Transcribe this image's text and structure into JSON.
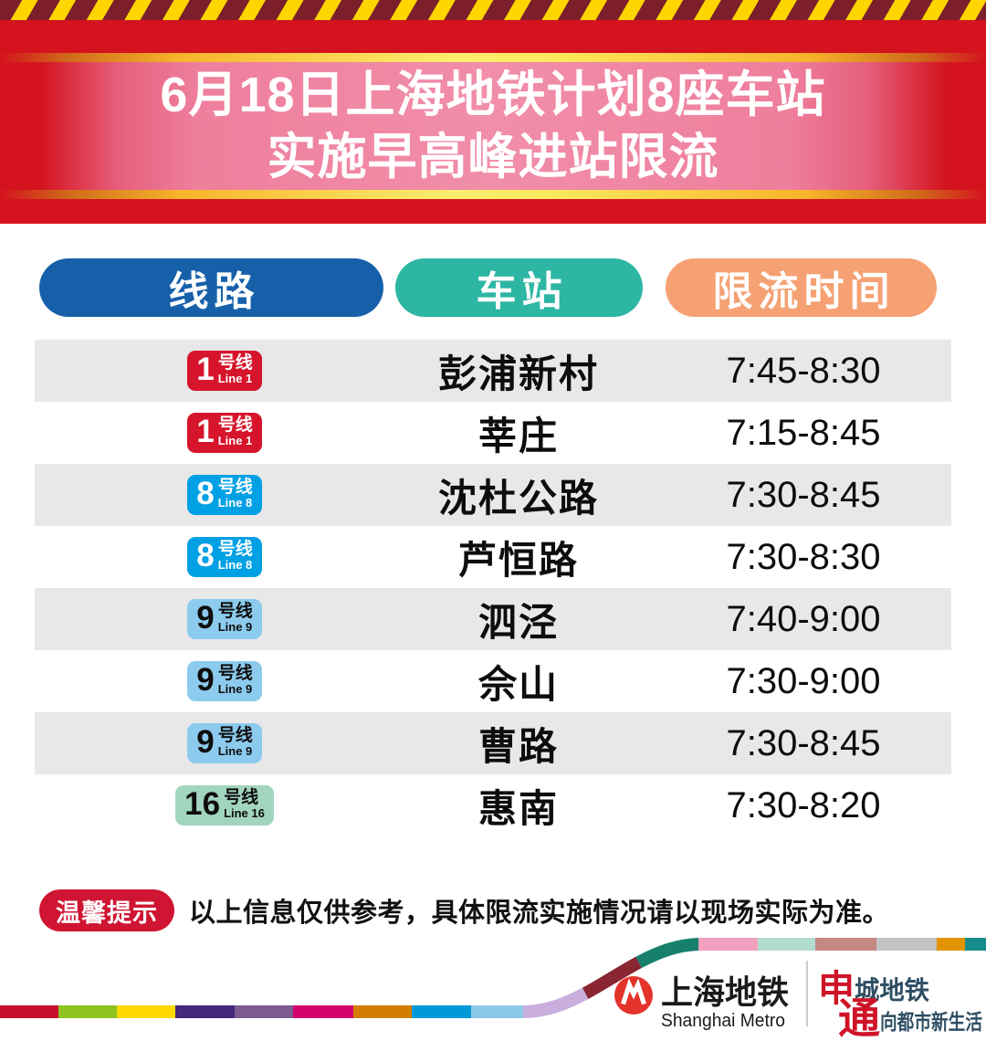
{
  "banner": {
    "title_line1": "6月18日上海地铁计划8座车站",
    "title_line2": "实施早高峰进站限流"
  },
  "table": {
    "headers": [
      {
        "label": "线路",
        "color": "#1660aa"
      },
      {
        "label": "车站",
        "color": "#2db6a3"
      },
      {
        "label": "限流时间",
        "color": "#f5a173"
      }
    ],
    "rows": [
      {
        "line_number": "1",
        "line_suffix": "号线",
        "line_en": "Line 1",
        "badge_bg": "#d6142b",
        "badge_fg": "#ffffff",
        "station": "彭浦新村",
        "time": "7:45-8:30"
      },
      {
        "line_number": "1",
        "line_suffix": "号线",
        "line_en": "Line 1",
        "badge_bg": "#d6142b",
        "badge_fg": "#ffffff",
        "station": "莘庄",
        "time": "7:15-8:45"
      },
      {
        "line_number": "8",
        "line_suffix": "号线",
        "line_en": "Line 8",
        "badge_bg": "#00a0e4",
        "badge_fg": "#ffffff",
        "station": "沈杜公路",
        "time": "7:30-8:45"
      },
      {
        "line_number": "8",
        "line_suffix": "号线",
        "line_en": "Line 8",
        "badge_bg": "#00a0e4",
        "badge_fg": "#ffffff",
        "station": "芦恒路",
        "time": "7:30-8:30"
      },
      {
        "line_number": "9",
        "line_suffix": "号线",
        "line_en": "Line 9",
        "badge_bg": "#8ccbee",
        "badge_fg": "#0d0d0d",
        "station": "泗泾",
        "time": "7:40-9:00"
      },
      {
        "line_number": "9",
        "line_suffix": "号线",
        "line_en": "Line 9",
        "badge_bg": "#8ccbee",
        "badge_fg": "#0d0d0d",
        "station": "佘山",
        "time": "7:30-9:00"
      },
      {
        "line_number": "9",
        "line_suffix": "号线",
        "line_en": "Line 9",
        "badge_bg": "#8ccbee",
        "badge_fg": "#0d0d0d",
        "station": "曹路",
        "time": "7:30-8:45"
      },
      {
        "line_number": "16",
        "line_suffix": "号线",
        "line_en": "Line 16",
        "badge_bg": "#a2d5bf",
        "badge_fg": "#0d0d0d",
        "station": "惠南",
        "time": "7:30-8:20"
      }
    ]
  },
  "notice": {
    "badge": "温馨提示",
    "badge_color": "#d01533",
    "text": "以上信息仅供参考，具体限流实施情况请以现场实际为准。"
  },
  "footer": {
    "logo_cn": "上海地铁",
    "logo_en": "Shanghai Metro",
    "logo_red": "#e4332b",
    "slogan_1_head": "申",
    "slogan_1_rest": "城地铁",
    "slogan_2_head": "通",
    "slogan_2_rest": "向都市新生活",
    "slogan_head_color": "#cf1427",
    "slogan_rest_color": "#2e4e63",
    "stripe_bottom_colors": [
      "#c8102e",
      "#8fc31f",
      "#ffd900",
      "#46287d",
      "#7d5b93",
      "#d4006e",
      "#d27d00",
      "#0099d8",
      "#8cc8e8"
    ],
    "curve_colors": [
      "#c9aede",
      "#8a2532",
      "#17806d"
    ],
    "stripe_top_colors": [
      "#f2a0bf",
      "#b2dccd",
      "#c58883",
      "#c3c3c3",
      "#e29400",
      "#168c8c"
    ]
  }
}
